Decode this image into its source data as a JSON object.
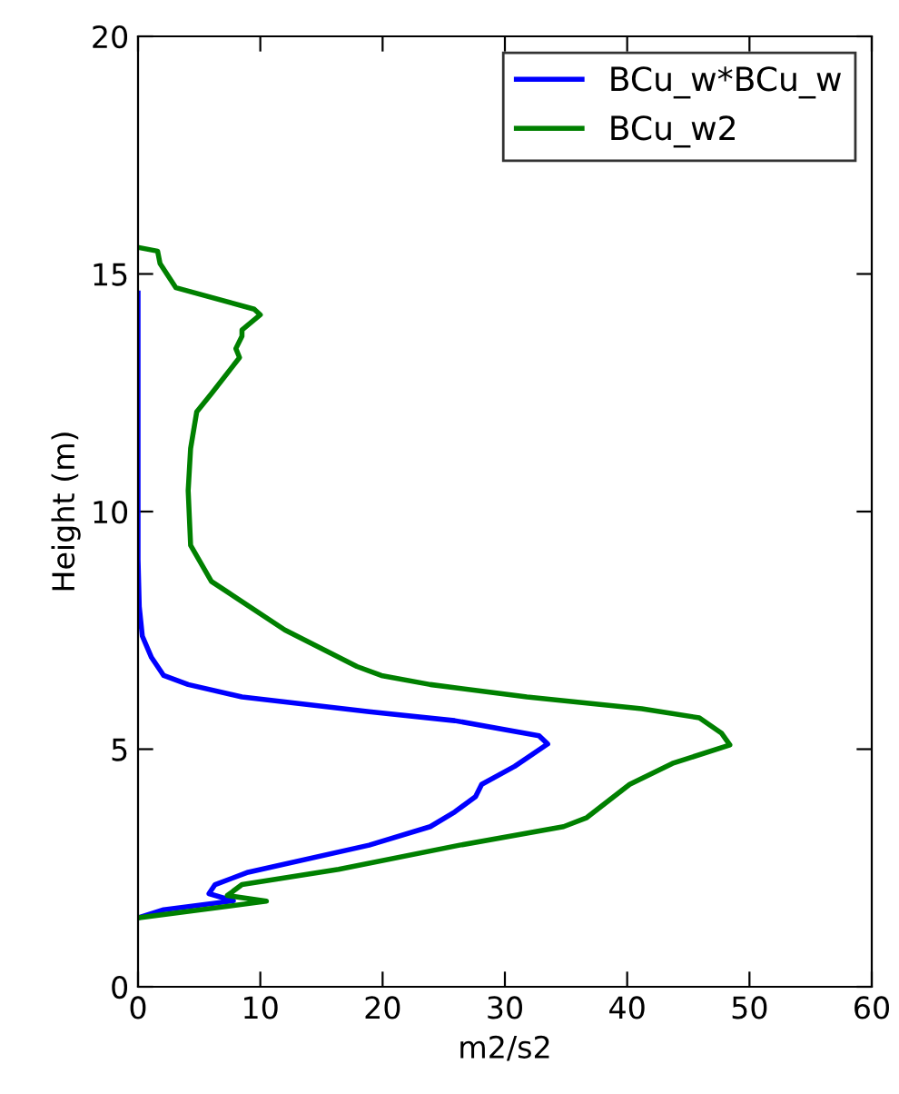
{
  "chart_data": {
    "type": "line",
    "xlabel": "m2/s2",
    "ylabel": "Height (m)",
    "xlim": [
      0,
      60
    ],
    "ylim": [
      0,
      20
    ],
    "xticks": [
      0,
      10,
      20,
      30,
      40,
      50,
      60
    ],
    "yticks": [
      0,
      5,
      10,
      15,
      20
    ],
    "grid": false,
    "legend": "top right",
    "marker": "none",
    "line_style": "solid",
    "series": [
      {
        "name": "BCu_w*BCu_w",
        "color": "#0000ff",
        "x": [
          0,
          2.1,
          7.8,
          5.8,
          6.3,
          9.0,
          18.9,
          23.9,
          25.9,
          27.6,
          28.1,
          30.8,
          33.5,
          32.8,
          25.9,
          18.9,
          8.5,
          4.1,
          2.1,
          1.1,
          0.35,
          0.1,
          0,
          0
        ],
        "values": [
          1.45,
          1.62,
          1.81,
          1.96,
          2.15,
          2.41,
          2.98,
          3.37,
          3.68,
          4.0,
          4.26,
          4.64,
          5.11,
          5.28,
          5.6,
          5.79,
          6.1,
          6.36,
          6.55,
          6.93,
          7.38,
          8.0,
          9.0,
          14.6
        ]
      },
      {
        "name": "BCu_w2",
        "color": "#008000",
        "x": [
          0,
          10.5,
          7.3,
          8.5,
          16.4,
          26.3,
          34.8,
          36.7,
          40.2,
          43.7,
          48.4,
          47.7,
          45.9,
          41.2,
          31.8,
          23.9,
          19.9,
          17.9,
          12.0,
          6.0,
          4.3,
          4.1,
          4.3,
          4.8,
          6.0,
          8.3,
          8.0,
          8.5,
          8.5,
          10.0,
          9.5,
          3.1,
          1.8,
          1.6,
          0
        ],
        "values": [
          1.45,
          1.8,
          1.92,
          2.15,
          2.47,
          2.98,
          3.37,
          3.56,
          4.26,
          4.7,
          5.09,
          5.34,
          5.66,
          5.85,
          6.1,
          6.36,
          6.55,
          6.74,
          7.51,
          8.53,
          9.29,
          10.44,
          11.33,
          12.1,
          12.48,
          13.24,
          13.43,
          13.69,
          13.82,
          14.14,
          14.26,
          14.71,
          15.22,
          15.48,
          15.56
        ]
      }
    ]
  }
}
